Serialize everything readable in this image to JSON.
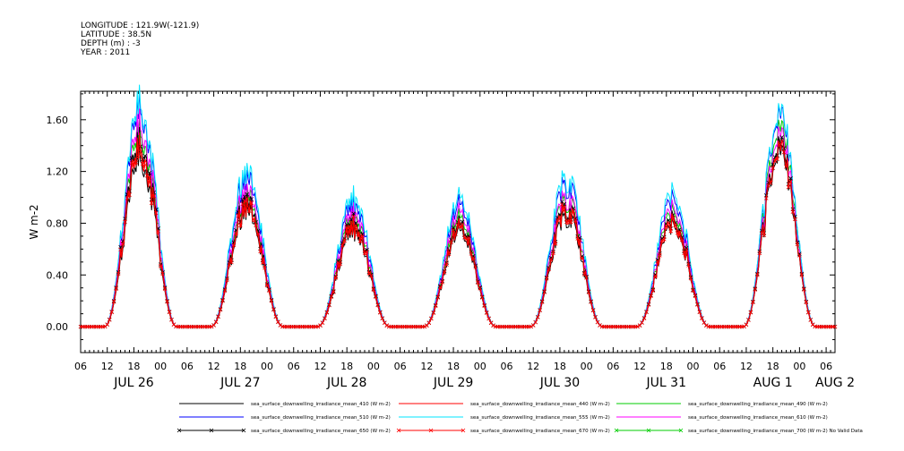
{
  "header": {
    "lines": [
      "LONGITUDE : 121.9W(-121.9)",
      "LATITUDE : 38.5N",
      "DEPTH (m) : -3",
      "YEAR : 2011"
    ]
  },
  "chart_data": {
    "type": "line",
    "ylabel": "W m-2",
    "ylim": [
      -0.2,
      1.82
    ],
    "yticks": [
      "0.00",
      "0.40",
      "0.80",
      "1.20",
      "1.60"
    ],
    "ytick_values": [
      0,
      0.4,
      0.8,
      1.2,
      1.6
    ],
    "x_hour_labels": [
      "06",
      "12",
      "18",
      "00",
      "06",
      "12",
      "18",
      "00",
      "06",
      "12",
      "18",
      "00",
      "06",
      "12",
      "18",
      "00",
      "06",
      "12",
      "18",
      "00",
      "06",
      "12",
      "18",
      "00",
      "06",
      "12",
      "18",
      "00",
      "06"
    ],
    "x_hour_values": [
      -18,
      -12,
      -6,
      0,
      6,
      12,
      18,
      24,
      30,
      36,
      42,
      48,
      54,
      60,
      66,
      72,
      78,
      84,
      90,
      96,
      102,
      108,
      114,
      120,
      126,
      132,
      138,
      144,
      150
    ],
    "x_day_labels": [
      "JUL 26",
      "JUL 27",
      "JUL 28",
      "JUL 29",
      "JUL 30",
      "JUL 31",
      "AUG  1",
      "AUG  2"
    ],
    "x_day_values": [
      -6,
      18,
      42,
      66,
      90,
      114,
      138,
      152
    ],
    "xlim": [
      -18,
      152
    ],
    "peak_hours": [
      -4.5,
      19.5,
      43.5,
      67.5,
      91.5,
      115.5,
      139.5
    ],
    "series": [
      {
        "name": "sea_surface_downwelling_irradiance_mean_410 (W m-2)",
        "color": "#000000",
        "marker": "",
        "peaks": [
          1.3,
          0.9,
          0.74,
          0.73,
          0.85,
          0.77,
          1.32
        ]
      },
      {
        "name": "sea_surface_downwelling_irradiance_mean_440 (W m-2)",
        "color": "#ff0000",
        "marker": "",
        "peaks": [
          1.35,
          0.92,
          0.76,
          0.75,
          0.88,
          0.78,
          1.36
        ]
      },
      {
        "name": "sea_surface_downwelling_irradiance_mean_490 (W m-2)",
        "color": "#00cc00",
        "marker": "",
        "peaks": [
          1.5,
          1.02,
          0.85,
          0.83,
          0.98,
          0.87,
          1.5
        ]
      },
      {
        "name": "sea_surface_downwelling_irradiance_mean_510 (W m-2)",
        "color": "#0000ff",
        "marker": "",
        "peaks": [
          1.68,
          1.15,
          0.95,
          0.93,
          1.1,
          0.97,
          1.6
        ]
      },
      {
        "name": "sea_surface_downwelling_irradiance_mean_555 (W m-2)",
        "color": "#00e5ff",
        "marker": "",
        "peaks": [
          1.72,
          1.2,
          1.0,
          0.98,
          1.15,
          1.02,
          1.62
        ]
      },
      {
        "name": "sea_surface_downwelling_irradiance_mean_610 (W m-2)",
        "color": "#ff00ff",
        "marker": "",
        "peaks": [
          1.55,
          1.05,
          0.88,
          0.87,
          1.0,
          0.9,
          1.45
        ]
      },
      {
        "name": "sea_surface_downwelling_irradiance_mean_650 (W m-2)",
        "color": "#000000",
        "marker": "x",
        "peaks": [
          1.42,
          0.97,
          0.8,
          0.78,
          0.92,
          0.82,
          1.38
        ]
      },
      {
        "name": "sea_surface_downwelling_irradiance_mean_670 (W m-2)",
        "color": "#ff0000",
        "marker": "x",
        "peaks": [
          1.38,
          0.94,
          0.78,
          0.76,
          0.9,
          0.8,
          1.35
        ]
      },
      {
        "name": "sea_surface_downwelling_irradiance_mean_700 (W m-2) No Valid Data",
        "color": "#00cc00",
        "marker": "x",
        "peaks": []
      }
    ]
  }
}
